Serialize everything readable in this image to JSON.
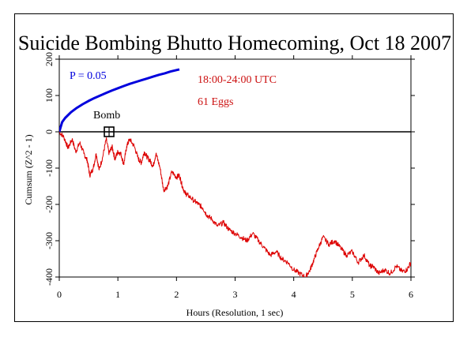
{
  "chart_data": {
    "type": "line",
    "title": "Suicide Bombing Bhutto Homecoming, Oct 18 2007",
    "xlabel": "Hours (Resolution, 1 sec)",
    "ylabel": "Cumsum (Z^2 - 1)",
    "xlim": [
      0,
      6
    ],
    "ylim": [
      -400,
      200
    ],
    "x_ticks": [
      "0",
      "1",
      "2",
      "3",
      "4",
      "5",
      "6"
    ],
    "y_ticks": [
      "-400",
      "-300",
      "-200",
      "-100",
      "0",
      "100",
      "200"
    ],
    "annotations": {
      "time_window": "18:00-24:00 UTC",
      "eggs": "61 Eggs",
      "event_label": "Bomb",
      "event_hour": 0.85,
      "event_value": 0,
      "probability_label": "P = 0.05"
    },
    "series": [
      {
        "name": "",
        "color": "#dd0000",
        "x": [
          0,
          0.08,
          0.15,
          0.22,
          0.28,
          0.35,
          0.42,
          0.48,
          0.52,
          0.58,
          0.63,
          0.68,
          0.74,
          0.8,
          0.85,
          0.9,
          0.95,
          1.0,
          1.05,
          1.1,
          1.15,
          1.2,
          1.28,
          1.35,
          1.4,
          1.45,
          1.5,
          1.55,
          1.6,
          1.65,
          1.72,
          1.78,
          1.85,
          1.92,
          2.0,
          2.05,
          2.1,
          2.15,
          2.2,
          2.3,
          2.38,
          2.45,
          2.52,
          2.6,
          2.7,
          2.8,
          2.9,
          3.0,
          3.1,
          3.2,
          3.3,
          3.4,
          3.5,
          3.6,
          3.7,
          3.8,
          3.9,
          4.0,
          4.1,
          4.2,
          4.28,
          4.35,
          4.42,
          4.5,
          4.6,
          4.7,
          4.8,
          4.9,
          5.0,
          5.1,
          5.2,
          5.3,
          5.35,
          5.45,
          5.55,
          5.65,
          5.75,
          5.85,
          5.93,
          6.0
        ],
        "y": [
          0,
          -15,
          -45,
          -20,
          -55,
          -30,
          -60,
          -80,
          -120,
          -100,
          -60,
          -105,
          -70,
          -20,
          -60,
          -40,
          -75,
          -55,
          -60,
          -90,
          -40,
          -20,
          -40,
          -75,
          -85,
          -55,
          -70,
          -80,
          -95,
          -60,
          -100,
          -160,
          -150,
          -110,
          -125,
          -120,
          -150,
          -170,
          -175,
          -190,
          -200,
          -210,
          -230,
          -240,
          -260,
          -250,
          -270,
          -280,
          -290,
          -300,
          -280,
          -300,
          -320,
          -340,
          -330,
          -350,
          -360,
          -380,
          -390,
          -400,
          -380,
          -350,
          -320,
          -290,
          -310,
          -300,
          -320,
          -340,
          -330,
          -360,
          -340,
          -370,
          -370,
          -390,
          -380,
          -390,
          -370,
          -385,
          -380,
          -360
        ]
      },
      {
        "name": "P = 0.05",
        "color": "#0000dd",
        "x": [
          0,
          0.05,
          0.1,
          0.2,
          0.3,
          0.4,
          0.5,
          0.6,
          0.7,
          0.8,
          0.9,
          1.0,
          1.1,
          1.2,
          1.3,
          1.4,
          1.5,
          1.6,
          1.7,
          1.8,
          1.9,
          2.0,
          2.05
        ],
        "y": [
          0,
          27,
          38,
          54,
          66,
          76,
          85,
          93,
          100,
          107,
          114,
          120,
          126,
          132,
          137,
          142,
          147,
          152,
          157,
          161,
          166,
          170,
          172
        ]
      }
    ]
  }
}
